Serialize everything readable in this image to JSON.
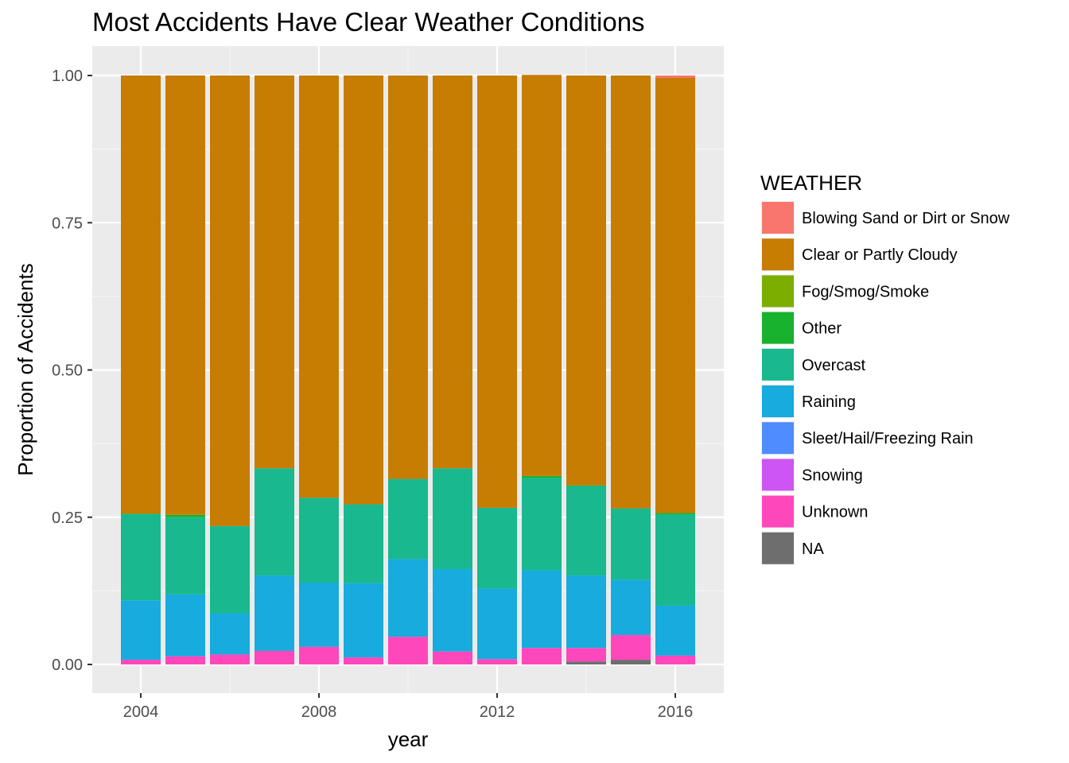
{
  "chart_data": {
    "type": "bar",
    "stacked": true,
    "title": "Most Accidents Have Clear Weather Conditions",
    "xlabel": "year",
    "ylabel": "Proportion of Accidents",
    "x": [
      2004,
      2005,
      2006,
      2007,
      2008,
      2009,
      2010,
      2011,
      2012,
      2013,
      2014,
      2015,
      2016
    ],
    "x_ticks": [
      2004,
      2008,
      2012,
      2016
    ],
    "x_tick_labels": [
      "2004",
      "2008",
      "2012",
      "2016"
    ],
    "ylim": [
      0,
      1
    ],
    "y_ticks": [
      0,
      0.25,
      0.5,
      0.75,
      1.0
    ],
    "y_tick_labels": [
      "0.00",
      "0.25",
      "0.50",
      "0.75",
      "1.00"
    ],
    "grid": true,
    "legend": {
      "title": "WEATHER",
      "position": "right"
    },
    "series": [
      {
        "name": "Blowing Sand or Dirt or Snow",
        "color": "#F8766D",
        "values": [
          0,
          0,
          0,
          0,
          0,
          0,
          0,
          0,
          0,
          0,
          0,
          0,
          0.004
        ]
      },
      {
        "name": "Clear or Partly Cloudy",
        "color": "#C77C02",
        "values": [
          0.744,
          0.746,
          0.765,
          0.667,
          0.717,
          0.728,
          0.685,
          0.667,
          0.734,
          0.681,
          0.696,
          0.735,
          0.739
        ]
      },
      {
        "name": "Fog/Smog/Smoke",
        "color": "#7CAE00",
        "values": [
          0,
          0,
          0,
          0,
          0,
          0,
          0,
          0,
          0,
          0,
          0,
          0,
          0
        ]
      },
      {
        "name": "Other",
        "color": "#18B22E",
        "values": [
          0.001,
          0.004,
          0,
          0,
          0,
          0,
          0,
          0,
          0,
          0.003,
          0.001,
          0,
          0.002
        ]
      },
      {
        "name": "Overcast",
        "color": "#19B88E",
        "values": [
          0.146,
          0.131,
          0.148,
          0.182,
          0.144,
          0.134,
          0.136,
          0.171,
          0.137,
          0.157,
          0.152,
          0.121,
          0.155
        ]
      },
      {
        "name": "Raining",
        "color": "#17ABDE",
        "values": [
          0.101,
          0.105,
          0.07,
          0.128,
          0.109,
          0.126,
          0.132,
          0.14,
          0.12,
          0.132,
          0.123,
          0.094,
          0.085
        ]
      },
      {
        "name": "Sleet/Hail/Freezing Rain",
        "color": "#4E8CFF",
        "values": [
          0,
          0,
          0,
          0,
          0,
          0,
          0,
          0,
          0,
          0,
          0,
          0,
          0
        ]
      },
      {
        "name": "Snowing",
        "color": "#CD55F3",
        "values": [
          0,
          0,
          0,
          0,
          0,
          0,
          0,
          0,
          0,
          0,
          0,
          0,
          0
        ]
      },
      {
        "name": "Unknown",
        "color": "#FF47BC",
        "values": [
          0.008,
          0.014,
          0.017,
          0.023,
          0.03,
          0.012,
          0.047,
          0.022,
          0.009,
          0.028,
          0.023,
          0.042,
          0.015
        ]
      },
      {
        "name": "NA",
        "color": "#6E6E6E",
        "values": [
          0,
          0,
          0,
          0,
          0,
          0,
          0,
          0,
          0,
          0,
          0.005,
          0.008,
          0
        ]
      }
    ]
  }
}
